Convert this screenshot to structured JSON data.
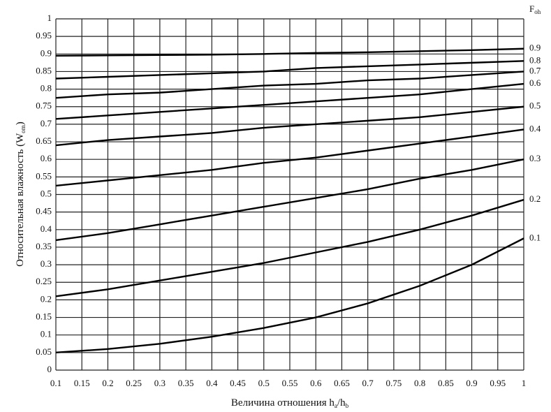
{
  "chart_data": {
    "type": "line",
    "y_label": [
      "Относительная влажность (W",
      "om",
      ")"
    ],
    "x_label": [
      "Величина отношения h",
      "a",
      "/h",
      "b"
    ],
    "legend_title": [
      "F",
      "oh"
    ],
    "x": [
      0.1,
      0.2,
      0.3,
      0.4,
      0.5,
      0.6,
      0.7,
      0.8,
      0.9,
      1
    ],
    "series": [
      {
        "name": "0.1",
        "color": "#000000",
        "values": [
          0.05,
          0.06,
          0.075,
          0.095,
          0.12,
          0.15,
          0.19,
          0.24,
          0.3,
          0.375
        ]
      },
      {
        "name": "0.2",
        "color": "#000000",
        "values": [
          0.21,
          0.23,
          0.255,
          0.28,
          0.305,
          0.335,
          0.365,
          0.4,
          0.44,
          0.485
        ]
      },
      {
        "name": "0.3",
        "color": "#000000",
        "values": [
          0.37,
          0.39,
          0.415,
          0.44,
          0.465,
          0.49,
          0.515,
          0.545,
          0.57,
          0.6
        ]
      },
      {
        "name": "0.4",
        "color": "#000000",
        "values": [
          0.525,
          0.54,
          0.555,
          0.57,
          0.59,
          0.605,
          0.625,
          0.645,
          0.665,
          0.685
        ]
      },
      {
        "name": "0.5",
        "color": "#000000",
        "values": [
          0.64,
          0.655,
          0.665,
          0.675,
          0.69,
          0.7,
          0.71,
          0.72,
          0.735,
          0.75
        ]
      },
      {
        "name": "0.6",
        "color": "#000000",
        "values": [
          0.715,
          0.725,
          0.735,
          0.745,
          0.755,
          0.765,
          0.775,
          0.785,
          0.8,
          0.815
        ]
      },
      {
        "name": "0.7",
        "color": "#000000",
        "values": [
          0.775,
          0.785,
          0.79,
          0.8,
          0.81,
          0.815,
          0.825,
          0.83,
          0.84,
          0.85
        ]
      },
      {
        "name": "0.8",
        "color": "#000000",
        "values": [
          0.83,
          0.835,
          0.84,
          0.845,
          0.85,
          0.86,
          0.865,
          0.87,
          0.875,
          0.88
        ]
      },
      {
        "name": "0.9",
        "color": "#000000",
        "values": [
          0.895,
          0.896,
          0.897,
          0.898,
          0.9,
          0.903,
          0.905,
          0.908,
          0.911,
          0.915
        ]
      }
    ],
    "xlim": [
      0.1,
      1
    ],
    "xticks": [
      0.1,
      0.15,
      0.2,
      0.25,
      0.3,
      0.35,
      0.4,
      0.45,
      0.5,
      0.55,
      0.6,
      0.65,
      0.7,
      0.75,
      0.8,
      0.85,
      0.9,
      0.95,
      1
    ],
    "ylim": [
      0,
      1
    ],
    "yticks": [
      0,
      0.05,
      0.1,
      0.15,
      0.2,
      0.25,
      0.3,
      0.35,
      0.4,
      0.45,
      0.5,
      0.55,
      0.6,
      0.65,
      0.7,
      0.75,
      0.8,
      0.85,
      0.9,
      0.95,
      1
    ],
    "grid": true
  }
}
